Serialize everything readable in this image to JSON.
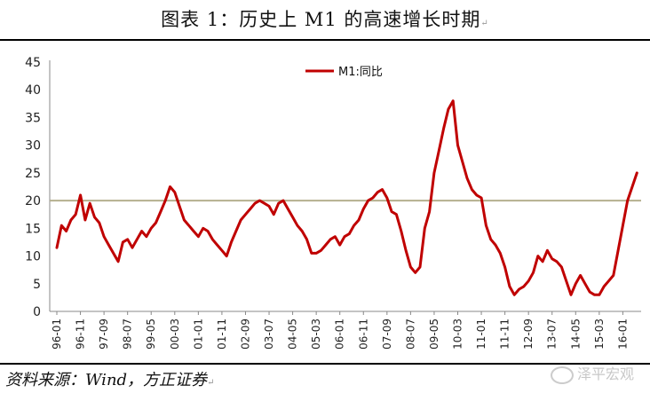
{
  "caption": {
    "text": "图表 1：历史上 M1 的高速增长时期",
    "mark": "↵"
  },
  "source": {
    "text": "资料来源：Wind，方正证券",
    "mark": "↵"
  },
  "watermark": {
    "text": "泽平宏观",
    "icon": "wechat-icon"
  },
  "chart_data": {
    "type": "line",
    "title": "",
    "xlabel": "",
    "ylabel": "",
    "ylim": [
      0,
      45
    ],
    "yticks": [
      0,
      5,
      10,
      15,
      20,
      25,
      30,
      35,
      40,
      45
    ],
    "xticks": [
      "96-01",
      "96-11",
      "97-09",
      "98-07",
      "99-05",
      "00-03",
      "01-01",
      "01-11",
      "02-09",
      "03-07",
      "04-05",
      "05-03",
      "06-01",
      "06-11",
      "07-09",
      "08-07",
      "09-05",
      "10-03",
      "11-01",
      "11-11",
      "12-09",
      "13-07",
      "14-05",
      "15-03",
      "16-01"
    ],
    "legend": {
      "position": "top-center"
    },
    "reference_line": {
      "y": 20,
      "color": "#b5b08f"
    },
    "series": [
      {
        "name": "M1:同比",
        "color": "#c00000",
        "x": [
          "96-01",
          "96-03",
          "96-05",
          "96-07",
          "96-09",
          "96-11",
          "97-01",
          "97-03",
          "97-05",
          "97-07",
          "97-09",
          "97-11",
          "98-01",
          "98-03",
          "98-05",
          "98-07",
          "98-09",
          "98-11",
          "99-01",
          "99-03",
          "99-05",
          "99-07",
          "99-09",
          "99-11",
          "00-01",
          "00-03",
          "00-05",
          "00-07",
          "00-09",
          "00-11",
          "01-01",
          "01-03",
          "01-05",
          "01-07",
          "01-09",
          "01-11",
          "02-01",
          "02-03",
          "02-05",
          "02-07",
          "02-09",
          "02-11",
          "03-01",
          "03-03",
          "03-05",
          "03-07",
          "03-09",
          "03-11",
          "04-01",
          "04-03",
          "04-05",
          "04-07",
          "04-09",
          "04-11",
          "05-01",
          "05-03",
          "05-05",
          "05-07",
          "05-09",
          "05-11",
          "06-01",
          "06-03",
          "06-05",
          "06-07",
          "06-09",
          "06-11",
          "07-01",
          "07-03",
          "07-05",
          "07-07",
          "07-09",
          "07-11",
          "08-01",
          "08-03",
          "08-05",
          "08-07",
          "08-09",
          "08-11",
          "09-01",
          "09-03",
          "09-05",
          "09-07",
          "09-09",
          "09-11",
          "10-01",
          "10-03",
          "10-05",
          "10-07",
          "10-09",
          "10-11",
          "11-01",
          "11-03",
          "11-05",
          "11-07",
          "11-09",
          "11-11",
          "12-01",
          "12-03",
          "12-05",
          "12-07",
          "12-09",
          "12-11",
          "13-01",
          "13-03",
          "13-05",
          "13-07",
          "13-09",
          "13-11",
          "14-01",
          "14-03",
          "14-05",
          "14-07",
          "14-09",
          "14-11",
          "15-01",
          "15-03",
          "15-05",
          "15-07",
          "15-09",
          "15-11",
          "16-01",
          "16-03",
          "16-05",
          "16-07"
        ],
        "values": [
          11.5,
          15.5,
          14.5,
          16.5,
          17.5,
          21,
          16.5,
          19.5,
          17,
          16,
          13.5,
          12,
          10.5,
          9,
          12.5,
          13,
          11.5,
          13,
          14.5,
          13.5,
          15,
          16,
          18,
          20,
          22.5,
          21.5,
          19,
          16.5,
          15.5,
          14.5,
          13.5,
          15,
          14.5,
          13,
          12,
          11,
          10,
          12.5,
          14.5,
          16.5,
          17.5,
          18.5,
          19.5,
          20,
          19.5,
          19,
          17.5,
          19.5,
          20,
          18.5,
          17,
          15.5,
          14.5,
          13,
          10.5,
          10.5,
          11,
          12,
          13,
          13.5,
          12,
          13.5,
          14,
          15.5,
          16.5,
          18.5,
          20,
          20.5,
          21.5,
          22,
          20.5,
          18,
          17.5,
          14.5,
          11,
          8,
          7,
          8,
          15,
          18,
          25,
          29,
          33,
          36.5,
          38,
          30,
          27,
          24,
          22,
          21,
          20.5,
          15.5,
          13,
          12,
          10.5,
          8,
          4.5,
          3,
          4,
          4.5,
          5.5,
          7,
          10,
          9,
          11,
          9.5,
          9,
          8,
          5.5,
          3,
          5,
          6.5,
          5,
          3.5,
          3,
          3,
          4.5,
          5.5,
          6.5,
          11,
          15.5,
          20,
          22.5,
          25
        ]
      }
    ]
  }
}
